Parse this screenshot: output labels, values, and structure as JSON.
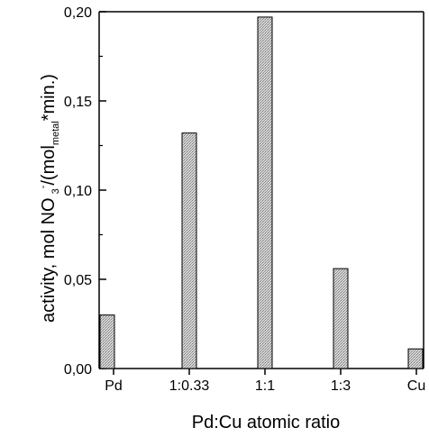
{
  "chart_data": {
    "type": "bar",
    "categories": [
      "Pd",
      "1:0.33",
      "1:1",
      "1:3",
      "Cu"
    ],
    "values": [
      0.03,
      0.132,
      0.197,
      0.056,
      0.011
    ],
    "xlabel": "Pd:Cu atomic ratio",
    "ylabel": {
      "prefix": "activity, mol NO",
      "sub_3": "3",
      "sup_minus": "-",
      "mid": "/(mol",
      "sub_metal": "metal",
      "suffix": "*min.)"
    },
    "ylim": [
      0,
      0.2
    ],
    "yticks": [
      "0,00",
      "0,05",
      "0,10",
      "0,15",
      "0,20"
    ],
    "grid": false,
    "colors": {
      "bar_fill": "#c8c8c8",
      "bar_stroke": "#000000",
      "axis": "#000000"
    }
  }
}
